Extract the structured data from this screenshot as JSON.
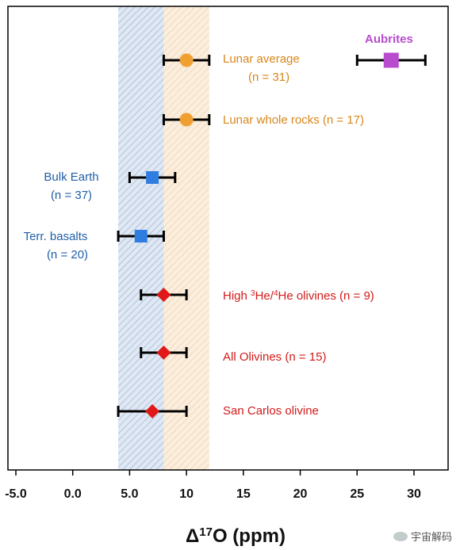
{
  "chart_data": {
    "type": "scatter",
    "xlabel_base": "Δ",
    "xlabel_sup": "17",
    "xlabel_rest": "O (ppm)",
    "xlim": [
      -5,
      33
    ],
    "xticks": [
      -5,
      0,
      5,
      10,
      15,
      20,
      25,
      30
    ],
    "xtick_labels": [
      "-5.0",
      "0.0",
      "5.0",
      "10",
      "15",
      "20",
      "25",
      "30"
    ],
    "bands": [
      {
        "name": "earth-band",
        "from": 4,
        "to": 8,
        "color": "#4f7fbf"
      },
      {
        "name": "lunar-band",
        "from": 8,
        "to": 12,
        "color": "#e0a050"
      }
    ],
    "points": [
      {
        "id": "aubrites",
        "value": 28,
        "err": [
          25,
          31
        ],
        "marker": "square",
        "color": "#b84ccf",
        "label": "Aubrites",
        "n": ""
      },
      {
        "id": "lunar-average",
        "value": 10,
        "err": [
          8,
          12
        ],
        "marker": "circle",
        "color": "#f0a030",
        "label": "Lunar average",
        "n": "31"
      },
      {
        "id": "lunar-whole-rocks",
        "value": 10,
        "err": [
          8,
          12
        ],
        "marker": "circle",
        "color": "#f0a030",
        "label": "Lunar whole rocks",
        "n": "17"
      },
      {
        "id": "bulk-earth",
        "value": 7,
        "err": [
          5,
          9
        ],
        "marker": "square",
        "color": "#2f7de0",
        "label": "Bulk Earth",
        "n": "37"
      },
      {
        "id": "terr-basalts",
        "value": 6,
        "err": [
          4,
          8
        ],
        "marker": "square",
        "color": "#2f7de0",
        "label": "Terr. basalts",
        "n": "20"
      },
      {
        "id": "high-he-olivines",
        "value": 8,
        "err": [
          6,
          10
        ],
        "marker": "diamond",
        "color": "#e01818",
        "label": "High 3He/4He olivines",
        "n": "9"
      },
      {
        "id": "all-olivines",
        "value": 8,
        "err": [
          6,
          10
        ],
        "marker": "diamond",
        "color": "#e01818",
        "label": "All Olivines",
        "n": "15"
      },
      {
        "id": "san-carlos",
        "value": 7,
        "err": [
          4,
          10
        ],
        "marker": "diamond",
        "color": "#e01818",
        "label": "San Carlos olivine",
        "n": ""
      }
    ]
  },
  "labels": {
    "aubrites": "Aubrites",
    "lunar_average": "Lunar average",
    "lunar_average_n": "(n = 31)",
    "lunar_whole_rocks": "Lunar whole rocks (n = 17)",
    "bulk_earth": "Bulk Earth",
    "bulk_earth_n": "(n = 37)",
    "terr_basalts": "Terr. basalts",
    "terr_basalts_n": "(n = 20)",
    "high_he_pre": "High ",
    "high_he_sup1": "3",
    "high_he_mid": "He/",
    "high_he_sup2": "4",
    "high_he_post": "He olivines (n = 9)",
    "all_olivines": "All Olivines (n = 15)",
    "san_carlos": "San Carlos olivine"
  },
  "watermark": "宇宙解码"
}
